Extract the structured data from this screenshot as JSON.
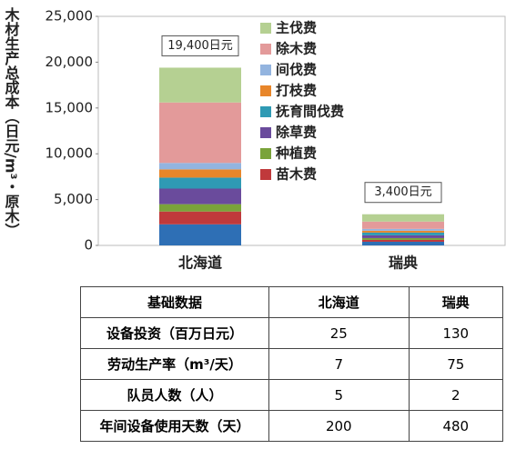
{
  "chart_data": {
    "type": "stacked_bar",
    "y_label": "木材生产总成本（日元/m³・原木）",
    "categories": [
      "北海道",
      "瑞典"
    ],
    "total_labels": [
      "19,400日元",
      "3,400日元"
    ],
    "series": [
      {
        "color": "#2e6fb5",
        "values": [
          2300,
          400
        ]
      },
      {
        "name": "苗木费",
        "color": "#c0393b",
        "values": [
          1400,
          200
        ]
      },
      {
        "name": "种植费",
        "color": "#7aa33a",
        "values": [
          800,
          200
        ]
      },
      {
        "name": "除草费",
        "color": "#6a4b9c",
        "values": [
          1700,
          300
        ]
      },
      {
        "name": "抚育間伐费",
        "color": "#2f9ab4",
        "values": [
          1200,
          300
        ]
      },
      {
        "name": "打枝费",
        "color": "#e8862a",
        "values": [
          900,
          200
        ]
      },
      {
        "name": "间伐费",
        "color": "#93b4df",
        "values": [
          700,
          200
        ]
      },
      {
        "name": "除木费",
        "color": "#e39a9a",
        "values": [
          6600,
          800
        ]
      },
      {
        "name": "主伐费",
        "color": "#b5d092",
        "values": [
          3800,
          800
        ]
      }
    ],
    "ylim": [
      0,
      25000
    ],
    "yticks": [
      0,
      {
        "value": 5000,
        "label": "5,000"
      },
      {
        "value": 10000,
        "label": "10,000"
      },
      {
        "value": 15000,
        "label": "15,000"
      },
      {
        "value": 20000,
        "label": "20,000"
      },
      {
        "value": 25000,
        "label": "25,000"
      }
    ]
  },
  "table": {
    "header": [
      "基础数据",
      "北海道",
      "瑞典"
    ],
    "rows": [
      [
        "设备投资（百万日元）",
        25,
        130
      ],
      [
        "劳动生产率（m³/天）",
        7,
        75
      ],
      [
        "队员人数（人）",
        5,
        2
      ],
      [
        "年间设备使用天数（天）",
        200,
        480
      ]
    ]
  }
}
